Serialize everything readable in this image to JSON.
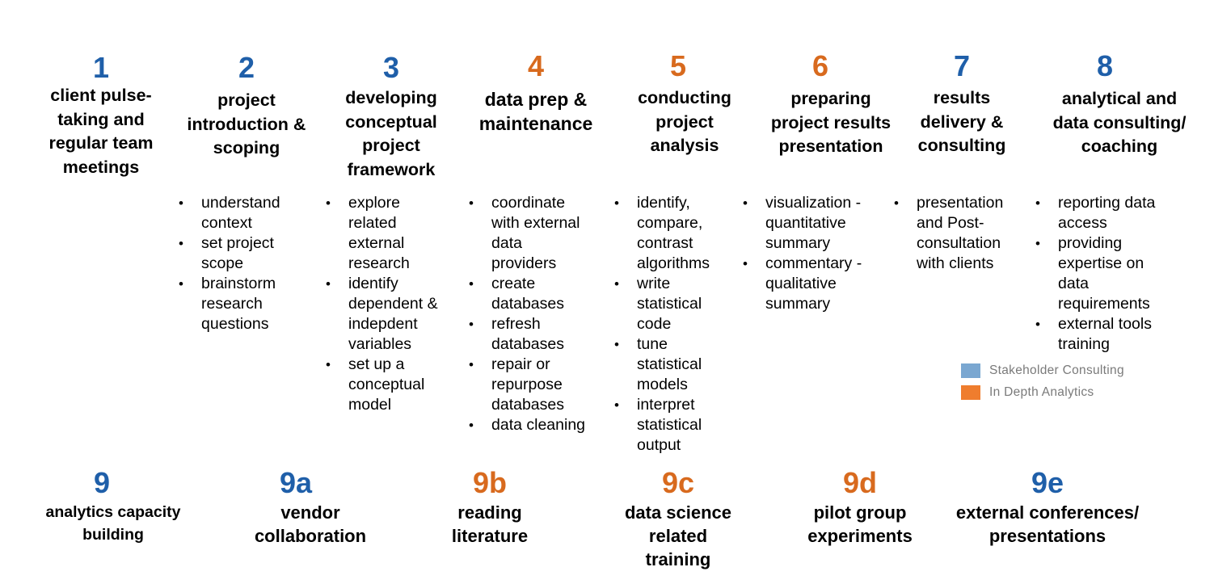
{
  "legend": [
    {
      "label": "Stakeholder Consulting",
      "color": "#7aa7d1"
    },
    {
      "label": "In Depth Analytics",
      "color": "#ef7d2e"
    }
  ],
  "steps": [
    {
      "number": "1",
      "title": [
        "client pulse-",
        "taking and",
        "regular  team",
        "meetings"
      ],
      "bullets": []
    },
    {
      "number": "2",
      "title": [
        "project",
        "introduction &",
        "scoping"
      ],
      "bullets": [
        [
          "understand",
          "context"
        ],
        [
          "set project",
          "scope"
        ],
        [
          "brainstorm",
          "research",
          "questions"
        ]
      ]
    },
    {
      "number": "3",
      "title": [
        "developing",
        "conceptual",
        "project",
        "framework"
      ],
      "bullets": [
        [
          "explore",
          "related",
          "external",
          "research"
        ],
        [
          "identify",
          "dependent &",
          "indepdent",
          "variables"
        ],
        [
          "set up a",
          "conceptual",
          "model"
        ]
      ]
    },
    {
      "number": "4",
      "title": [
        "data prep  &",
        "maintenance"
      ],
      "bullets": [
        [
          "coordinate",
          "with external",
          "data",
          "providers"
        ],
        [
          "create",
          "databases"
        ],
        [
          "refresh",
          "databases"
        ],
        [
          "repair or",
          "repurpose",
          "databases"
        ],
        [
          "data cleaning"
        ]
      ]
    },
    {
      "number": "5",
      "title": [
        "conducting",
        "project",
        "analysis"
      ],
      "bullets": [
        [
          "identify,",
          "compare,",
          "contrast",
          "algorithms"
        ],
        [
          "write",
          "statistical",
          "code"
        ],
        [
          "tune",
          "statistical",
          "models"
        ],
        [
          "interpret",
          "statistical",
          "output"
        ]
      ]
    },
    {
      "number": "6",
      "title": [
        "preparing",
        "project results",
        "presentation"
      ],
      "bullets": [
        [
          "visualization -",
          "quantitative",
          "summary"
        ],
        [
          "commentary -",
          "qualitative",
          "summary"
        ]
      ]
    },
    {
      "number": "7",
      "title": [
        "results",
        "delivery &",
        "consulting"
      ],
      "bullets": [
        [
          "presentation",
          "and Post-",
          "consultation",
          "with clients"
        ]
      ]
    },
    {
      "number": "8",
      "title": [
        "analytical and",
        "data consulting/",
        "coaching"
      ],
      "bullets": [
        [
          "reporting data",
          "access"
        ],
        [
          "providing",
          "expertise on",
          "data",
          "requirements"
        ],
        [
          "external tools",
          "training"
        ]
      ]
    }
  ],
  "substeps": [
    {
      "number": "9",
      "title": [
        "analytics capacity",
        "building"
      ]
    },
    {
      "number": "9a",
      "title": [
        "vendor",
        "collaboration"
      ]
    },
    {
      "number": "9b",
      "title": [
        "reading",
        "literature"
      ]
    },
    {
      "number": "9c",
      "title": [
        "data science",
        "related",
        "training"
      ]
    },
    {
      "number": "9d",
      "title": [
        "pilot group",
        "experiments"
      ]
    },
    {
      "number": "9e",
      "title": [
        "external conferences/",
        "presentations"
      ]
    }
  ]
}
